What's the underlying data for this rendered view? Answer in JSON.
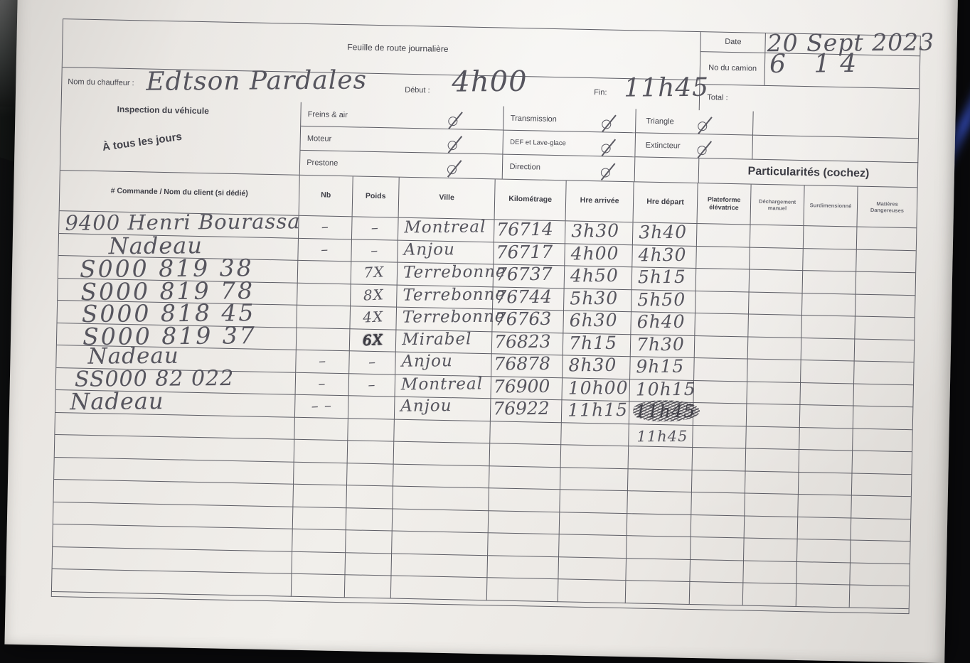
{
  "photo": {
    "description": "photo of a paper daily route sheet on a dark surface",
    "paper_color": "#f0eeea",
    "background_color": "#0a0a0c",
    "grid_line_color": "#5d5d65",
    "pencil_color": "#56555e",
    "blue_streak_color": "#3a56d4"
  },
  "header": {
    "title": "Feuille de route journalière",
    "date_label": "Date",
    "date_value": "20 Sept 2023",
    "truck_label": "No du camion",
    "truck_value": "6 14",
    "driver_label": "Nom du chauffeur :",
    "driver_value": "Edtson Pardales",
    "start_label": "Début :",
    "start_value": "4h00",
    "end_label": "Fin:",
    "end_value": "11h45",
    "total_label": "Total :",
    "total_value": ""
  },
  "inspection": {
    "section_title": "Inspection du véhicule",
    "section_subtitle": "À tous les jours",
    "col1": [
      {
        "label": "Freins & air",
        "checked": true
      },
      {
        "label": "Moteur",
        "checked": true
      },
      {
        "label": "Prestone",
        "checked": true
      }
    ],
    "col2": [
      {
        "label": "Transmission",
        "checked": true
      },
      {
        "label": "DEF et Lave-glace",
        "checked": true
      },
      {
        "label": "Direction",
        "checked": true
      }
    ],
    "col3": [
      {
        "label": "Triangle",
        "checked": true
      },
      {
        "label": "Extincteur",
        "checked": true
      }
    ],
    "particularites_label": "Particularités (cochez)"
  },
  "table": {
    "headers": [
      "# Commande / Nom du client (si dédié)",
      "Nb",
      "Poids",
      "Ville",
      "Kilométrage",
      "Hre arrivée",
      "Hre départ",
      "Plateforme élévatrice",
      "Déchargement manuel",
      "Surdimensionné",
      "Matières Dangereuses"
    ],
    "rows": [
      {
        "client": "9400 Henri Bourassa",
        "nb": "–",
        "poids": "–",
        "ville": "Montreal",
        "km": "76714",
        "arr": "3h30",
        "dep": "3h40"
      },
      {
        "client": "Nadeau",
        "nb": "–",
        "poids": "–",
        "ville": "Anjou",
        "km": "76717",
        "arr": "4h00",
        "dep": "4h30"
      },
      {
        "client": "S000 819 38",
        "nb": "",
        "poids": "7X",
        "ville": "Terrebonne",
        "km": "76737",
        "arr": "4h50",
        "dep": "5h15"
      },
      {
        "client": "S000 819 78",
        "nb": "",
        "poids": "8X",
        "ville": "Terrebonne",
        "km": "76744",
        "arr": "5h30",
        "dep": "5h50"
      },
      {
        "client": "S000 818 45",
        "nb": "",
        "poids": "4X",
        "ville": "Terrebonne",
        "km": "76763",
        "arr": "6h30",
        "dep": "6h40"
      },
      {
        "client": "S000 819 37",
        "nb": "",
        "poids": "6X",
        "ville": "Mirabel",
        "km": "76823",
        "arr": "7h15",
        "dep": "7h30"
      },
      {
        "client": "Nadeau",
        "nb": "–",
        "poids": "–",
        "ville": "Anjou",
        "km": "76878",
        "arr": "8h30",
        "dep": "9h15"
      },
      {
        "client": "SS000 82 022",
        "nb": "–",
        "poids": "–",
        "ville": "Montreal",
        "km": "76900",
        "arr": "10h00",
        "dep": "10h15"
      },
      {
        "client": "Nadeau",
        "nb": "– –",
        "poids": "",
        "ville": "Anjou",
        "km": "76922",
        "arr": "11h15",
        "dep": "11h45",
        "dep_status": "crossed-out"
      }
    ],
    "corrected_departure": "11h45"
  }
}
